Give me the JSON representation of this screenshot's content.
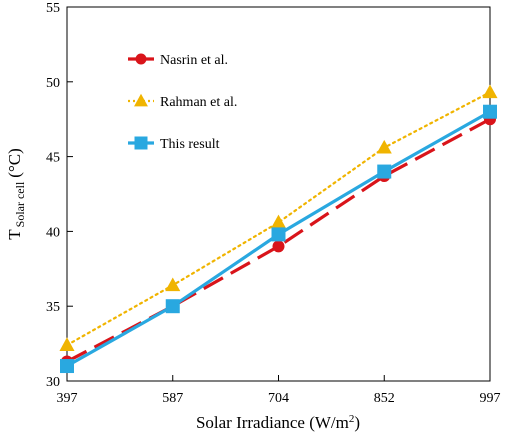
{
  "chart_data": {
    "type": "line",
    "categories": [
      "397",
      "587",
      "704",
      "852",
      "997"
    ],
    "series": [
      {
        "name": "Nasrin et al.",
        "values": [
          31.3,
          35.0,
          39.0,
          43.7,
          47.5
        ],
        "color": "#d9141a",
        "line_style": "long-dash",
        "marker": "circle"
      },
      {
        "name": "Rahman et al.",
        "values": [
          32.4,
          36.4,
          40.6,
          45.6,
          49.3
        ],
        "color": "#f0b400",
        "line_style": "dotted",
        "marker": "triangle"
      },
      {
        "name": "This result",
        "values": [
          31.0,
          35.0,
          39.8,
          44.0,
          48.0
        ],
        "color": "#29a8e0",
        "line_style": "solid",
        "marker": "square"
      }
    ],
    "xlabel_main": "Solar Irradiance (W/m",
    "xlabel_sup": "2",
    "xlabel_end": ")",
    "ylabel_main": "T",
    "ylabel_sub": "Solar cell",
    "ylabel_end": "(°C)",
    "ylim": [
      30,
      55
    ],
    "yticks": [
      "30",
      "35",
      "40",
      "45",
      "50",
      "55"
    ],
    "legend_position": "top-left",
    "grid": false
  }
}
